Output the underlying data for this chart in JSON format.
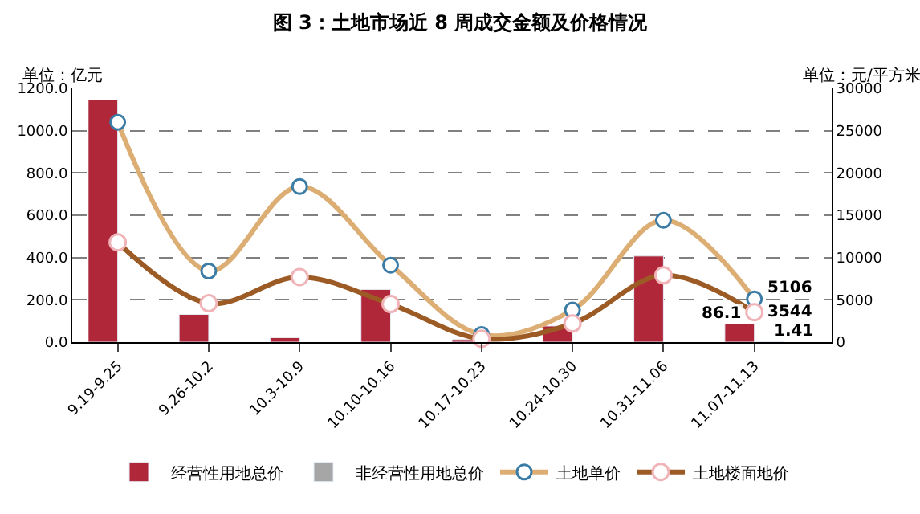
{
  "chart_data": {
    "type": "bar",
    "title": "图 3：土地市场近 8 周成交金额及价格情况",
    "ylabel": "单位：亿元",
    "y2label": "单位：元/平方米",
    "categories": [
      "9.19-9.25",
      "9.26-10.2",
      "10.3-10.9",
      "10.10-10.16",
      "10.17-10.23",
      "10.24-10.30",
      "10.31-11.06",
      "11.07-11.13"
    ],
    "series": [
      {
        "name": "经营性用地总价",
        "color": "#b0273a",
        "values": [
          1145,
          131,
          21,
          249,
          12,
          76,
          407,
          86.1
        ],
        "value_labels": [
          null,
          null,
          null,
          null,
          null,
          null,
          null,
          "86.1"
        ]
      },
      {
        "name": "非经营性用地总价",
        "type": "bar",
        "color": "#a6a6a6",
        "values": [
          null,
          null,
          null,
          null,
          null,
          null,
          null,
          1.41
        ],
        "value_labels": [
          null,
          null,
          null,
          null,
          null,
          null,
          null,
          "1.41"
        ]
      },
      {
        "name": "土地楼面地价",
        "type": "line",
        "axis": "y2",
        "color": "#9c5a25",
        "values": [
          11800,
          4600,
          7700,
          4500,
          400,
          2200,
          7900,
          3544
        ],
        "value_labels": [
          null,
          null,
          null,
          null,
          null,
          null,
          null,
          "3544"
        ]
      },
      {
        "name": "土地单价",
        "type": "line",
        "axis": "y2",
        "color": "#dcae74",
        "values": [
          26000,
          8400,
          18400,
          9100,
          900,
          3800,
          14400,
          5106
        ],
        "value_labels": [
          null,
          null,
          null,
          null,
          null,
          null,
          null,
          "5106"
        ]
      }
    ],
    "ylim": [
      0,
      1200
    ],
    "yticks": [
      {
        "value": 0,
        "label": "0.0"
      },
      {
        "value": 200,
        "label": "200.0"
      },
      {
        "value": 400,
        "label": "400.0"
      },
      {
        "value": 600,
        "label": "600.0"
      },
      {
        "value": 800,
        "label": "800.0"
      },
      {
        "value": 1000,
        "label": "1000.0"
      },
      {
        "value": 1200,
        "label": "1200.0"
      }
    ],
    "y2lim": [
      0,
      30000
    ],
    "y2ticks": [
      0,
      5000,
      10000,
      15000,
      20000,
      25000,
      30000
    ],
    "grid": "y",
    "legend": "bottom",
    "marker": "circle",
    "line_style": "solid"
  }
}
